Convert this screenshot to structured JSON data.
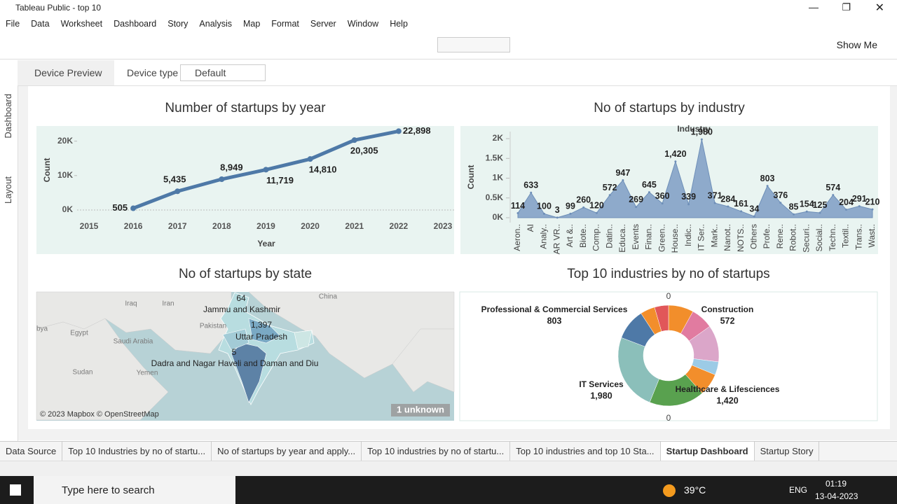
{
  "window": {
    "title": "Tableau Public - top 10"
  },
  "menu": [
    "File",
    "Data",
    "Worksheet",
    "Dashboard",
    "Story",
    "Analysis",
    "Map",
    "Format",
    "Server",
    "Window",
    "Help"
  ],
  "toolbar": {
    "show_me": "Show Me"
  },
  "sidebar": [
    "Dashboard",
    "Layout"
  ],
  "device_bar": {
    "preview": "Device Preview",
    "type_label": "Device type",
    "type_value": "Default"
  },
  "chart_data": [
    {
      "type": "line",
      "title": "Number of startups by year",
      "x_label": "Year",
      "y_label": "Count",
      "x": [
        2016,
        2017,
        2018,
        2019,
        2020,
        2021,
        2022
      ],
      "values": [
        505,
        5435,
        8949,
        11719,
        14810,
        20305,
        22898
      ],
      "value_labels": [
        "505",
        "5,435",
        "8,949",
        "11,719",
        "14,810",
        "20,305",
        "22,898"
      ],
      "color": "#4e79a7",
      "xlim": [
        2015,
        2023
      ],
      "xticks": [
        2015,
        2016,
        2017,
        2018,
        2019,
        2020,
        2021,
        2022,
        2023
      ],
      "ylim": [
        0,
        24000
      ],
      "yticks": [
        {
          "value": 0,
          "label": "0K"
        },
        {
          "value": 10000,
          "label": "10K"
        },
        {
          "value": 20000,
          "label": "20K"
        }
      ]
    },
    {
      "type": "area",
      "title": "No of startups by industry",
      "x_label": "Industry",
      "y_label": "Count",
      "categories": [
        "Aeron..",
        "AI",
        "Analy..",
        "AR VR..",
        "Art &..",
        "Biote..",
        "Comp..",
        "Datin..",
        "Educa..",
        "Events",
        "Finan..",
        "Green..",
        "House..",
        "Indic..",
        "IT Ser..",
        "Mark..",
        "Nanot..",
        "NOTS..",
        "Others",
        "Profe..",
        "Rene..",
        "Robot..",
        "Securi..",
        "Social..",
        "Techn..",
        "Textil..",
        "Trans..",
        "Wast.."
      ],
      "values": [
        114,
        633,
        100,
        3,
        99,
        260,
        120,
        572,
        947,
        269,
        645,
        360,
        1420,
        339,
        1980,
        371,
        284,
        161,
        34,
        803,
        376,
        85,
        154,
        125,
        574,
        204,
        291,
        210
      ],
      "value_labels": [
        "114",
        "633",
        "100",
        "3",
        "99",
        "260",
        "120",
        "572",
        "947",
        "269",
        "645",
        "360",
        "1,420",
        "339",
        "1,980",
        "371",
        "284",
        "161",
        "34",
        "803",
        "376",
        "85",
        "154",
        "125",
        "574",
        "204",
        "291",
        "210"
      ],
      "color": "#8eaacb",
      "ylim": [
        0,
        2100
      ],
      "yticks": [
        {
          "value": 0,
          "label": "0K"
        },
        {
          "value": 500,
          "label": "0.5K"
        },
        {
          "value": 1000,
          "label": "1K"
        },
        {
          "value": 1500,
          "label": "1.5K"
        },
        {
          "value": 2000,
          "label": "2K"
        }
      ]
    },
    {
      "type": "donut",
      "title": "Top 10 industries by no of startups",
      "top_label": "0",
      "bottom_label": "0",
      "categories": [
        null,
        "Construction",
        null,
        null,
        null,
        "Healthcare & Lifesciences",
        "IT Services",
        "Professional & Commercial Services",
        null,
        null
      ],
      "values": [
        645,
        572,
        947,
        339,
        574,
        1420,
        1980,
        803,
        376,
        360
      ],
      "value_labels": [
        null,
        "572",
        null,
        null,
        null,
        "1,420",
        "1,980",
        "803",
        null,
        null
      ],
      "colors": [
        "#f28e2b",
        "#e17ba0",
        "#dba6c9",
        "#9ccbe6",
        "#f28e2b",
        "#59a14f",
        "#8bbfba",
        "#4e79a7",
        "#f28e2b",
        "#e15759"
      ]
    }
  ],
  "map": {
    "title": "No of startups by state",
    "base_labels": [
      "Iraq",
      "Iran",
      "Pakistan",
      "China",
      "Egypt",
      "Saudi Arabia",
      "Yemen",
      "Sudan",
      "bya"
    ],
    "state_labels": [
      "64",
      "Jammu and Kashmir",
      "1,397",
      "Uttar Pradesh",
      "5",
      "Dadra and Nagar Haveli and Daman and Diu"
    ],
    "attribution": "© 2023 Mapbox © OpenStreetMap",
    "unknown": "1 unknown"
  },
  "tabs": [
    "Data Source",
    "Top 10 Industries by no of startu...",
    "No of startups by year and apply...",
    "Top 10 industries by no of startu...",
    "Top 10 industries and top 10 Sta...",
    "Startup Dashboard",
    "Startup Story"
  ],
  "taskbar": {
    "search": "Type here to search",
    "weather": "39°C",
    "language": "ENG",
    "time": "01:19",
    "date": "13-04-2023"
  }
}
